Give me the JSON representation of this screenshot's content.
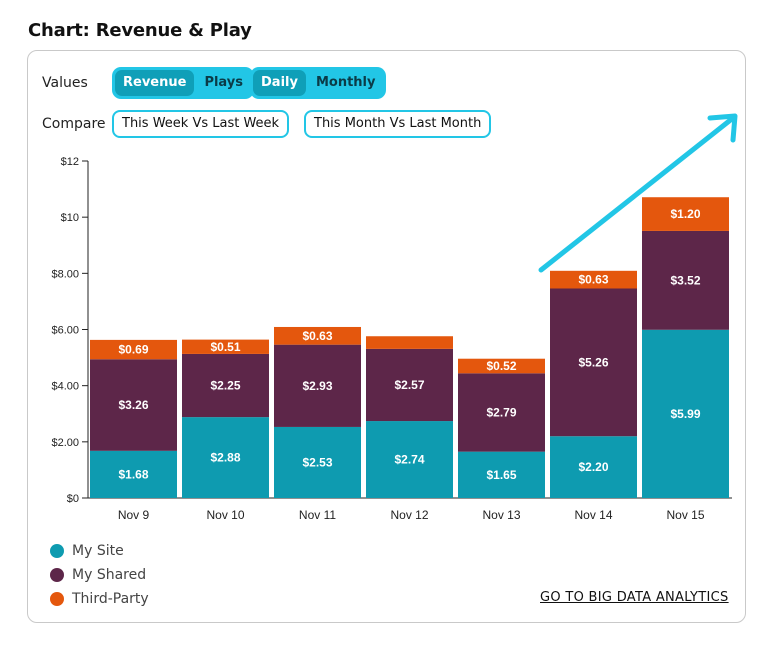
{
  "page_title": "Chart: Revenue & Play",
  "controls": {
    "values_label": "Values",
    "values_options": [
      "Revenue",
      "Plays"
    ],
    "values_selected": "Revenue",
    "period_options": [
      "Daily",
      "Monthly"
    ],
    "period_selected": "Daily",
    "compare_label": "Compare",
    "compare_options": [
      "This Week Vs Last Week",
      "This Month Vs Last Month"
    ]
  },
  "legend": [
    {
      "name": "My Site",
      "color": "#0e9bb0"
    },
    {
      "name": "My Shared",
      "color": "#5d2649"
    },
    {
      "name": "Third-Party",
      "color": "#e4570d"
    }
  ],
  "link_label": "GO TO BIG DATA ANALYTICS",
  "colors": {
    "accent": "#22c6e6",
    "accent_dark": "#0f9fb8",
    "my_site": "#0e9bb0",
    "my_shared": "#5d2649",
    "third_party": "#e4570d"
  },
  "chart_data": {
    "type": "bar",
    "stacked": true,
    "title": "Chart: Revenue & Play",
    "xlabel": "",
    "ylabel": "",
    "categories": [
      "Nov 9",
      "Nov 10",
      "Nov 11",
      "Nov 12",
      "Nov 13",
      "Nov 14",
      "Nov 15"
    ],
    "series": [
      {
        "name": "My Site",
        "values": [
          1.68,
          2.88,
          2.53,
          2.74,
          1.65,
          2.2,
          5.99
        ],
        "labels": [
          "$1.68",
          "$2.88",
          "$2.53",
          "$2.74",
          "$1.65",
          "$2.20",
          "$5.99"
        ]
      },
      {
        "name": "My Shared",
        "values": [
          3.26,
          2.25,
          2.93,
          2.57,
          2.79,
          5.26,
          3.52
        ],
        "labels": [
          "$3.26",
          "$2.25",
          "$2.93",
          "$2.57",
          "$2.79",
          "$5.26",
          "$3.52"
        ]
      },
      {
        "name": "Third-Party",
        "values": [
          0.69,
          0.51,
          0.63,
          0.45,
          0.52,
          0.63,
          1.2
        ],
        "labels": [
          "$0.69",
          "$0.51",
          "$0.63",
          "",
          "$0.52",
          "$0.63",
          "$1.20"
        ]
      }
    ],
    "ylim": [
      0,
      12
    ],
    "y_ticks": [
      0,
      2,
      4,
      6,
      8,
      10,
      12
    ],
    "y_tick_labels": [
      "$0",
      "$2.00",
      "$4.00",
      "$6.00",
      "$8.00",
      "$10",
      "$12"
    ],
    "grid": false,
    "legend_position": "bottom-left",
    "annotation": "upward trend arrow"
  }
}
